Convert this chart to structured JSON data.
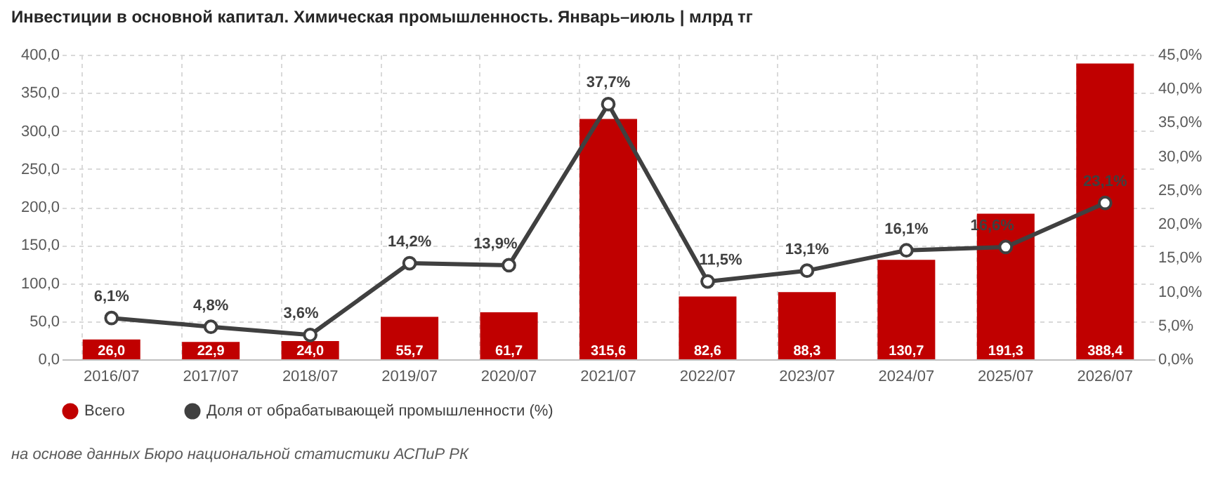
{
  "chart_data": {
    "type": "bar",
    "title": "Инвестиции в основной капитал. Химическая промышленность. Январь–июль | млрд тг",
    "categories": [
      "2016/07",
      "2017/07",
      "2018/07",
      "2019/07",
      "2020/07",
      "2021/07",
      "2022/07",
      "2023/07",
      "2024/07",
      "2025/07",
      "2026/07"
    ],
    "series": [
      {
        "name": "Всего",
        "color": "#c00000",
        "values": [
          26.0,
          22.9,
          24.0,
          55.7,
          61.7,
          315.6,
          82.6,
          88.3,
          130.7,
          191.3,
          388.4
        ],
        "value_labels": [
          "26,0",
          "22,9",
          "24,0",
          "55,7",
          "61,7",
          "315,6",
          "82,6",
          "88,3",
          "130,7",
          "191,3",
          "388,4"
        ]
      },
      {
        "name": "Доля от обрабатывающей промышленности (%)",
        "type": "line",
        "axis": "y2",
        "color": "#404040",
        "values": [
          6.1,
          4.8,
          3.6,
          14.2,
          13.9,
          37.7,
          11.5,
          13.1,
          16.1,
          16.6,
          23.1
        ],
        "value_labels": [
          "6,1%",
          "4,8%",
          "3,6%",
          "14,2%",
          "13,9%",
          "37,7%",
          "11,5%",
          "13,1%",
          "16,1%",
          "16,6%",
          "23,1%"
        ]
      }
    ],
    "ylim": [
      0,
      400
    ],
    "yticks": [
      {
        "value": 0,
        "label": "0,0"
      },
      {
        "value": 50,
        "label": "50,0"
      },
      {
        "value": 100,
        "label": "100,0"
      },
      {
        "value": 150,
        "label": "150,0"
      },
      {
        "value": 200,
        "label": "200,0"
      },
      {
        "value": 250,
        "label": "250,0"
      },
      {
        "value": 300,
        "label": "300,0"
      },
      {
        "value": 350,
        "label": "350,0"
      },
      {
        "value": 400,
        "label": "400,0"
      }
    ],
    "y2lim": [
      0,
      45
    ],
    "y2ticks": [
      {
        "value": 0,
        "label": "0,0%"
      },
      {
        "value": 5,
        "label": "5,0%"
      },
      {
        "value": 10,
        "label": "10,0%"
      },
      {
        "value": 15,
        "label": "15,0%"
      },
      {
        "value": 20,
        "label": "20,0%"
      },
      {
        "value": 25,
        "label": "25,0%"
      },
      {
        "value": 30,
        "label": "30,0%"
      },
      {
        "value": 35,
        "label": "35,0%"
      },
      {
        "value": 40,
        "label": "40,0%"
      },
      {
        "value": 45,
        "label": "45,0%"
      }
    ],
    "grid": true,
    "legend": "bottom",
    "marker": "circle",
    "annotations": [
      "на основе данных Бюро национальной статистики АСПиР РК"
    ]
  }
}
